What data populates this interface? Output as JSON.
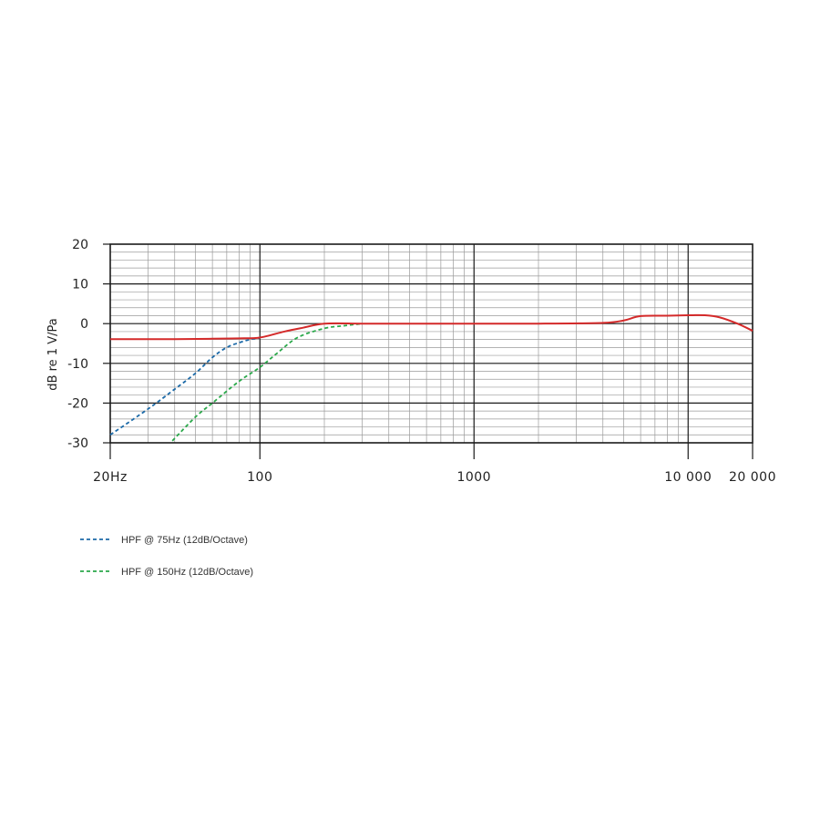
{
  "chart_data": {
    "type": "line",
    "ylabel": "dB re 1 V/Pa",
    "xscale": "log",
    "xlim": [
      20,
      20000
    ],
    "ylim": [
      -30,
      20
    ],
    "yticks": [
      20,
      10,
      0,
      -10,
      -20,
      -30
    ],
    "ytick_labels": [
      "20",
      "10",
      "0",
      "-10",
      "-20",
      "-30"
    ],
    "xticks": [
      20,
      100,
      1000,
      10000,
      20000
    ],
    "xtick_labels": [
      "20Hz",
      "100",
      "1000",
      "10 000",
      "20 000"
    ],
    "grid": true,
    "legend_position": "bottom-left",
    "series": [
      {
        "name": "",
        "color": "#d42a2a",
        "style": "solid",
        "x": [
          20,
          40,
          60,
          80,
          100,
          130,
          160,
          200,
          300,
          500,
          1000,
          2000,
          4000,
          5000,
          6000,
          8000,
          10000,
          12000,
          14000,
          17000,
          20000
        ],
        "y": [
          -3.9,
          -3.9,
          -3.8,
          -3.7,
          -3.5,
          -2.0,
          -1.0,
          0.0,
          0.0,
          0.0,
          0.0,
          0.0,
          0.2,
          0.8,
          1.9,
          2.0,
          2.1,
          2.1,
          1.6,
          0.0,
          -1.8
        ]
      },
      {
        "name": "HPF @ 75Hz (12dB/Octave)",
        "color": "#1c6aa8",
        "style": "dashed",
        "x": [
          20,
          30,
          40,
          50,
          60,
          70,
          80,
          90,
          100
        ],
        "y": [
          -28.0,
          -21.5,
          -16.5,
          -12.5,
          -8.5,
          -6.0,
          -4.8,
          -4.0,
          -3.6
        ]
      },
      {
        "name": "HPF @ 150Hz (12dB/Octave)",
        "color": "#2aa84a",
        "style": "dashed",
        "x": [
          39,
          50,
          60,
          80,
          100,
          120,
          150,
          200,
          250,
          300
        ],
        "y": [
          -29.5,
          -23.5,
          -20.0,
          -14.5,
          -11.0,
          -7.5,
          -3.5,
          -1.2,
          -0.5,
          0.0
        ]
      }
    ]
  }
}
